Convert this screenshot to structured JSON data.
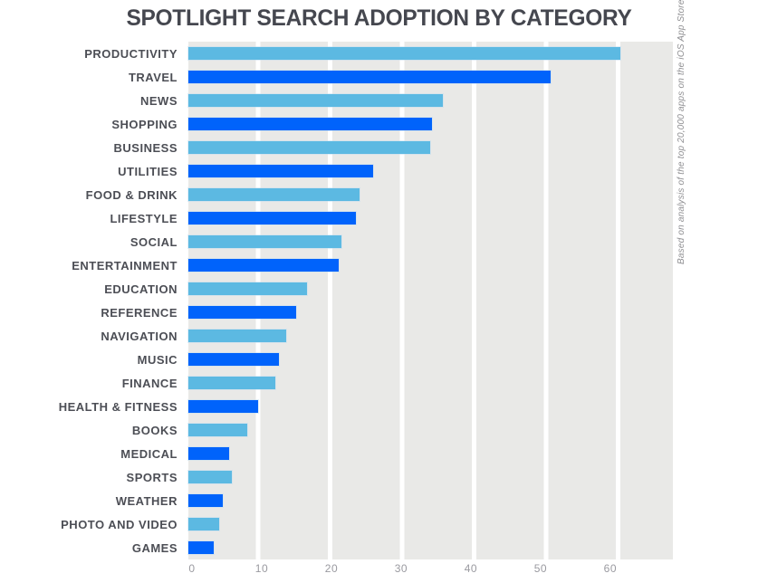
{
  "title": "SPOTLIGHT SEARCH ADOPTION BY CATEGORY",
  "side_note": "Based on analysis of the top 20,000 apps on the iOS App Store.",
  "colors": {
    "title_text": "#45474F",
    "category_text": "#4C4E55",
    "tick_text": "#9A9AA0",
    "note_text": "#8F8F92",
    "plot_band_gray": "#E9E9E7",
    "gridline_white": "#FFFFFF",
    "bar_light_blue": "#5CB9E2",
    "bar_bright_blue": "#0063FB"
  },
  "chart_data": {
    "type": "bar",
    "orientation": "horizontal",
    "title": "SPOTLIGHT SEARCH ADOPTION BY CATEGORY",
    "xlabel": "",
    "ylabel": "",
    "legend": "none",
    "grid": "vertical white gaps on gray bands at each x tick",
    "xlim": [
      0,
      69.5
    ],
    "x_ticks": [
      0,
      10,
      20,
      30,
      40,
      50,
      60
    ],
    "bar_colors_alternating": [
      "#5CB9E2",
      "#0063FB"
    ],
    "categories": [
      "PRODUCTIVITY",
      "TRAVEL",
      "NEWS",
      "SHOPPING",
      "BUSINESS",
      "UTILITIES",
      "FOOD & DRINK",
      "LIFESTYLE",
      "SOCIAL",
      "ENTERTAINMENT",
      "EDUCATION",
      "REFERENCE",
      "NAVIGATION",
      "MUSIC",
      "FINANCE",
      "HEALTH & FITNESS",
      "BOOKS",
      "MEDICAL",
      "SPORTS",
      "WEATHER",
      "PHOTO AND VIDEO",
      "GAMES"
    ],
    "values": [
      62,
      52,
      36.5,
      35,
      34.7,
      26.5,
      24.5,
      24,
      22,
      21.5,
      17,
      15.5,
      14,
      13,
      12.5,
      10,
      8.5,
      5.9,
      6.2,
      5,
      4.4,
      3.6
    ]
  }
}
